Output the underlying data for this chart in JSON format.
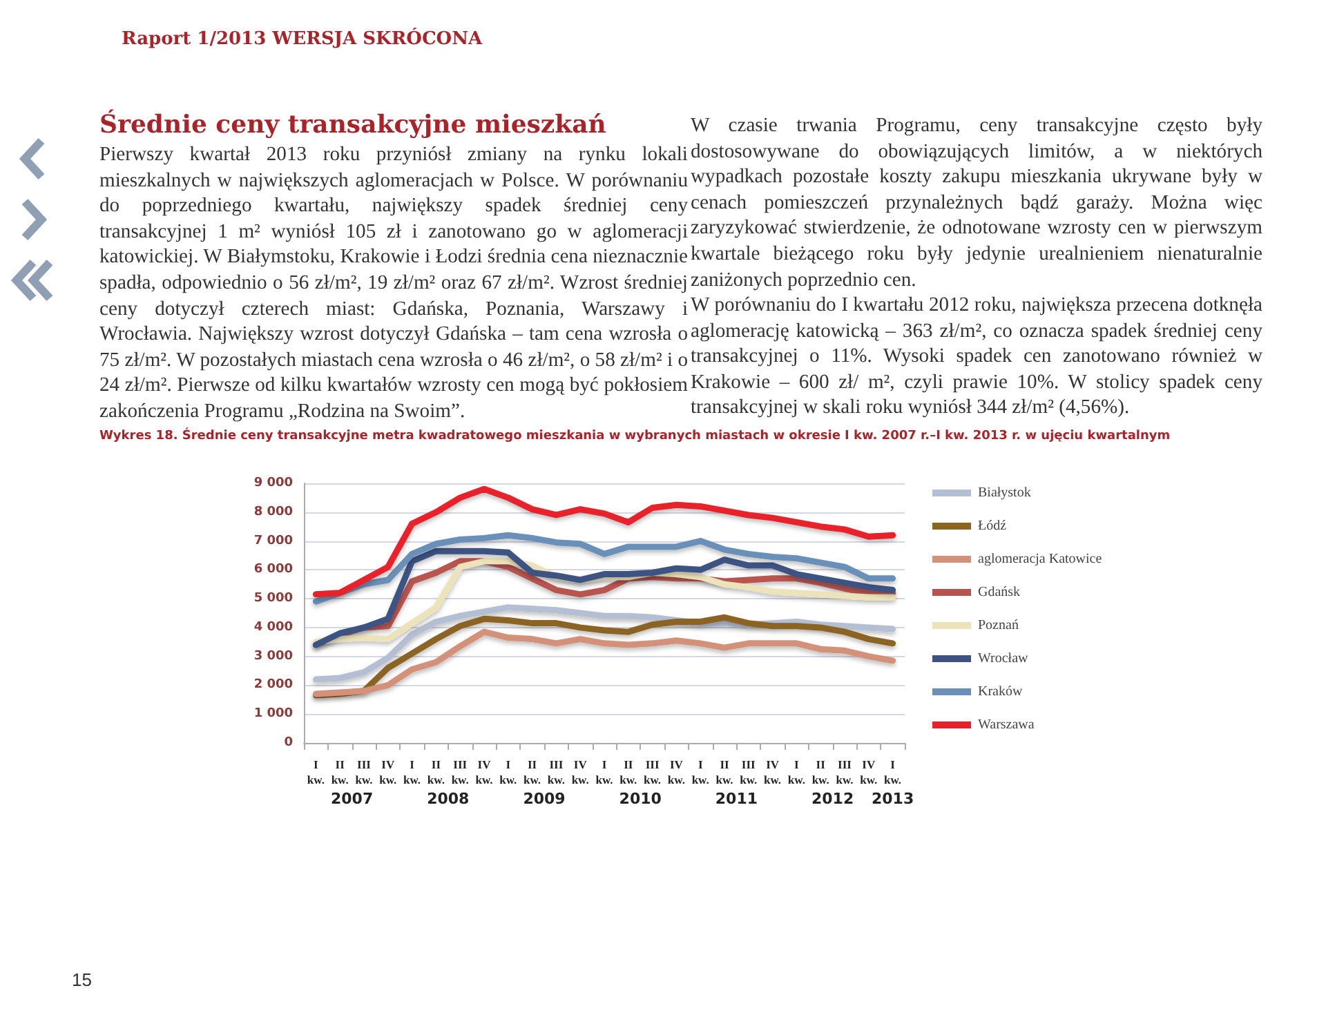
{
  "chart_data": {
    "type": "line",
    "title": "Wykres 18. Średnie ceny transakcyjne metra kwadratowego mieszkania w wybranych miastach w okresie I kw. 2007 r.–I kw. 2013 r. w ujęciu kwartalnym",
    "categories": [
      "I\nkw.",
      "II\nkw.",
      "III\nkw.",
      "IV\nkw.",
      "I\nkw.",
      "II\nkw.",
      "III\nkw.",
      "IV\nkw.",
      "I\nkw.",
      "II\nkw.",
      "III\nkw.",
      "IV\nkw.",
      "I\nkw.",
      "II\nkw.",
      "III\nkw.",
      "IV\nkw.",
      "I\nkw.",
      "II\nkw.",
      "III\nkw.",
      "IV\nkw.",
      "I\nkw.",
      "II\nkw.",
      "III\nkw.",
      "IV\nkw.",
      "I\nkw."
    ],
    "series": [
      {
        "name": "Białystok",
        "color": "#b4bfd3",
        "values": [
          2200,
          2250,
          2450,
          2950,
          3750,
          4200,
          4400,
          4550,
          4700,
          4650,
          4600,
          4500,
          4400,
          4400,
          4350,
          4250,
          4150,
          4150,
          4100,
          4150,
          4200,
          4100,
          4050,
          4000,
          3950
        ]
      },
      {
        "name": "Łódź",
        "color": "#8b6420",
        "values": [
          1650,
          1700,
          1800,
          2600,
          3100,
          3600,
          4050,
          4300,
          4250,
          4150,
          4150,
          4000,
          3900,
          3850,
          4100,
          4200,
          4200,
          4350,
          4150,
          4050,
          4050,
          4000,
          3850,
          3600,
          3450
        ]
      },
      {
        "name": "aglomeracja Katowice",
        "color": "#d4917a",
        "values": [
          1700,
          1750,
          1800,
          2000,
          2550,
          2800,
          3350,
          3850,
          3650,
          3600,
          3450,
          3600,
          3450,
          3400,
          3450,
          3550,
          3450,
          3300,
          3450,
          3450,
          3450,
          3250,
          3200,
          3000,
          2850
        ]
      },
      {
        "name": "Gdańsk",
        "color": "#b85450",
        "values": [
          3400,
          3750,
          4000,
          4050,
          5600,
          5900,
          6300,
          6300,
          6100,
          5700,
          5300,
          5150,
          5300,
          5700,
          5750,
          5700,
          5700,
          5600,
          5650,
          5700,
          5700,
          5550,
          5350,
          5200,
          5200
        ]
      },
      {
        "name": "Poznań",
        "color": "#ece3bb",
        "values": [
          3500,
          3600,
          3650,
          3600,
          4150,
          4700,
          6100,
          6300,
          6300,
          6150,
          5750,
          5650,
          5750,
          5750,
          5900,
          5850,
          5750,
          5500,
          5400,
          5250,
          5200,
          5150,
          5100,
          5050,
          5050
        ]
      },
      {
        "name": "Wrocław",
        "color": "#3e5282",
        "values": [
          3400,
          3800,
          4000,
          4300,
          6300,
          6650,
          6650,
          6650,
          6600,
          5900,
          5800,
          5650,
          5850,
          5850,
          5900,
          6050,
          6000,
          6350,
          6150,
          6150,
          5850,
          5700,
          5550,
          5400,
          5300
        ]
      },
      {
        "name": "Kraków",
        "color": "#6b8fb8",
        "values": [
          4900,
          5200,
          5500,
          5650,
          6550,
          6900,
          7050,
          7100,
          7200,
          7100,
          6950,
          6900,
          6550,
          6800,
          6800,
          6800,
          7000,
          6700,
          6550,
          6450,
          6400,
          6250,
          6100,
          5700,
          5700
        ]
      },
      {
        "name": "Warszawa",
        "color": "#e8202a",
        "values": [
          5150,
          5200,
          5650,
          6100,
          7600,
          8000,
          8500,
          8800,
          8500,
          8100,
          7900,
          8100,
          7950,
          7650,
          8150,
          8250,
          8200,
          8050,
          7900,
          7800,
          7650,
          7500,
          7400,
          7150,
          7200
        ]
      }
    ],
    "ylim": [
      0,
      9000
    ],
    "yticks": [
      0,
      {
        "value": 1000,
        "label": "1 000"
      },
      {
        "value": 2000,
        "label": "2 000"
      },
      {
        "value": 3000,
        "label": "3 000"
      },
      {
        "value": 4000,
        "label": "4 000"
      },
      {
        "value": 5000,
        "label": "5 000"
      },
      {
        "value": 6000,
        "label": "6 000"
      },
      {
        "value": 7000,
        "label": "7 000"
      },
      {
        "value": 8000,
        "label": "8 000"
      },
      {
        "value": 9000,
        "label": "9 000"
      }
    ],
    "grid": "y",
    "legend": "right",
    "marker": "none",
    "line_style": "solid",
    "annotations": [
      "Raport 1/2013 WERSJA SKRÓCONA",
      "Średnie ceny transakcyjne mieszkań",
      "Pierwszy kwartał 2013 roku przyniósł zmiany na rynku lokali mieszkalnych w największych aglomeracjach w Polsce. W porównaniu do poprzedniego kwartału, największy spadek średniej ceny transakcyjnej 1 m² wyniósł 105 zł i zanotowano go w aglomeracji katowickiej. W Białymstoku, Krakowie i Łodzi średnia cena nieznacznie spadła, odpowiednio o 56 zł/m², 19 zł/m² oraz 67 zł/m². Wzrost średniej ceny dotyczył czterech miast: Gdańska, Poznania, Warszawy i Wrocławia. Największy wzrost dotyczył Gdańska – tam cena wzrosła o 75 zł/m². W pozostałych miastach cena wzrosła o 46 zł/m², o 58 zł/m² i o 24 zł/m². Pierwsze od kilku kwartałów wzrosty cen mogą być pokłosiem zakończenia Programu „Rodzina na Swoim”.",
      "W czasie trwania Programu, ceny transakcyjne często były dostosowywane do obowiązujących limitów, a w niektórych wypadkach pozostałe koszty zakupu mieszkania ukrywane były w cenach pomieszczeń przynależnych bądź garaży. Można więc zaryzykować stwierdzenie, że odnotowane wzrosty cen w pierwszym kwartale bieżącego roku były jedynie urealnieniem nienaturalnie zaniżonych poprzednio cen.",
      "W porównaniu do I kwartału 2012 roku, największa przecena dotknęła aglomerację katowicką – 363 zł/m², co oznacza spadek średniej ceny transakcyjnej o 11%. Wysoki spadek cen zanotowano również w Krakowie – 600 zł/ m², czyli prawie 10%. W stolicy spadek ceny transakcyjnej w skali roku wyniósł 344 zł/m² (4,56%).",
      "2007",
      "2008",
      "2009",
      "2010",
      "2011",
      "2012",
      "2013",
      "15"
    ]
  }
}
